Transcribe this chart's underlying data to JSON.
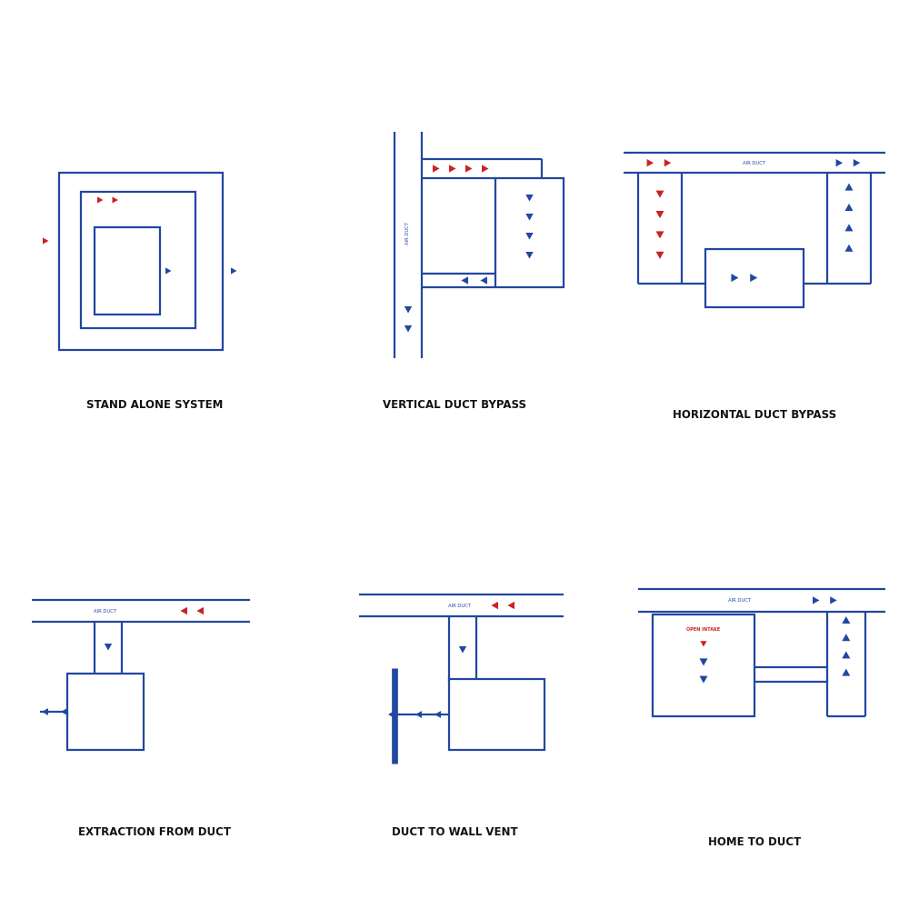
{
  "bg_color": "#ffffff",
  "blue": "#2147a0",
  "red": "#cc2222",
  "line_width": 1.6,
  "title_fontsize": 8.5,
  "label_fontsize": 3.8,
  "titles": [
    "STAND ALONE SYSTEM",
    "VERTICAL DUCT BYPASS",
    "HORIZONTAL DUCT BYPASS",
    "EXTRACTION FROM DUCT",
    "DUCT TO WALL VENT",
    "HOME TO DUCT"
  ]
}
